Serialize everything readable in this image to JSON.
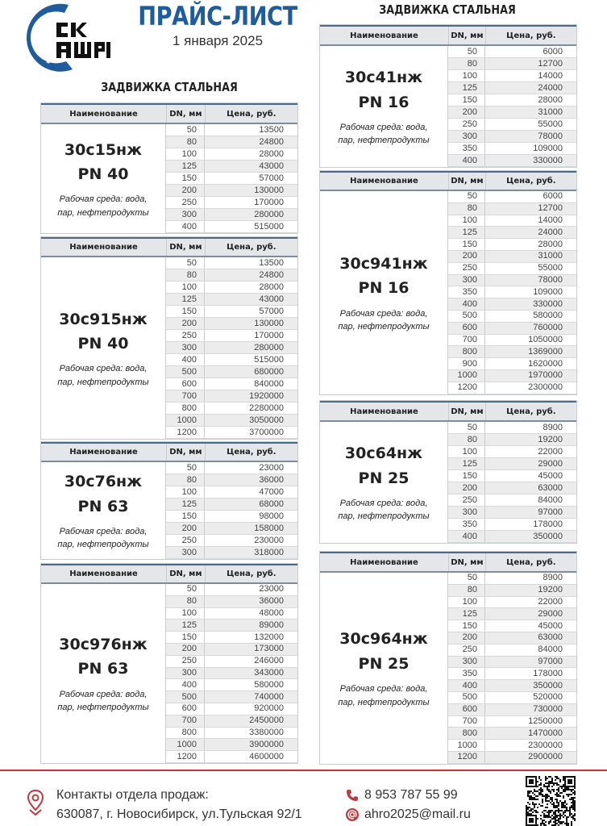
{
  "header": {
    "logo_text": [
      "СК",
      "АШРО"
    ],
    "title": "ПРАЙС-ЛИСТ",
    "date": "1 января 2025"
  },
  "section_title_left": "ЗАДВИЖКА СТАЛЬНАЯ",
  "section_title_right": "ЗАДВИЖКА СТАЛЬНАЯ",
  "columns": {
    "name": "Наименование",
    "dn": "DN, мм",
    "price": "Цена, руб."
  },
  "tables": [
    {
      "model": "30с15нж",
      "pn": "PN 40",
      "medium": "Рабочая среда: вода, пар, нефтепродукты",
      "rows": [
        [
          "50",
          "13500"
        ],
        [
          "80",
          "24800"
        ],
        [
          "100",
          "28000"
        ],
        [
          "125",
          "43000"
        ],
        [
          "150",
          "57000"
        ],
        [
          "200",
          "130000"
        ],
        [
          "250",
          "170000"
        ],
        [
          "300",
          "280000"
        ],
        [
          "400",
          "515000"
        ]
      ]
    },
    {
      "model": "30с915нж",
      "pn": "PN 40",
      "medium": "Рабочая среда: вода, пар, нефтепродукты",
      "rows": [
        [
          "50",
          "13500"
        ],
        [
          "80",
          "24800"
        ],
        [
          "100",
          "28000"
        ],
        [
          "125",
          "43000"
        ],
        [
          "150",
          "57000"
        ],
        [
          "200",
          "130000"
        ],
        [
          "250",
          "170000"
        ],
        [
          "300",
          "280000"
        ],
        [
          "400",
          "515000"
        ],
        [
          "500",
          "680000"
        ],
        [
          "600",
          "840000"
        ],
        [
          "700",
          "1920000"
        ],
        [
          "800",
          "2280000"
        ],
        [
          "1000",
          "3050000"
        ],
        [
          "1200",
          "3700000"
        ]
      ]
    },
    {
      "model": "30с76нж",
      "pn": "PN 63",
      "medium": "Рабочая среда: вода, пар, нефтепродукты",
      "rows": [
        [
          "50",
          "23000"
        ],
        [
          "80",
          "36000"
        ],
        [
          "100",
          "47000"
        ],
        [
          "125",
          "68000"
        ],
        [
          "150",
          "98000"
        ],
        [
          "200",
          "158000"
        ],
        [
          "250",
          "230000"
        ],
        [
          "300",
          "318000"
        ]
      ]
    },
    {
      "model": "30с976нж",
      "pn": "PN 63",
      "medium": "Рабочая среда: вода, пар, нефтепродукты",
      "rows": [
        [
          "50",
          "23000"
        ],
        [
          "80",
          "36000"
        ],
        [
          "100",
          "48000"
        ],
        [
          "125",
          "89000"
        ],
        [
          "150",
          "132000"
        ],
        [
          "200",
          "173000"
        ],
        [
          "250",
          "246000"
        ],
        [
          "300",
          "343000"
        ],
        [
          "400",
          "580000"
        ],
        [
          "500",
          "740000"
        ],
        [
          "600",
          "920000"
        ],
        [
          "700",
          "2450000"
        ],
        [
          "800",
          "3380000"
        ],
        [
          "1000",
          "3900000"
        ],
        [
          "1200",
          "4600000"
        ]
      ]
    },
    {
      "model": "30с41нж",
      "pn": "PN 16",
      "medium": "Рабочая среда: вода, пар, нефтепродукты",
      "rows": [
        [
          "50",
          "6000"
        ],
        [
          "80",
          "12700"
        ],
        [
          "100",
          "14000"
        ],
        [
          "125",
          "24000"
        ],
        [
          "150",
          "28000"
        ],
        [
          "200",
          "31000"
        ],
        [
          "250",
          "55000"
        ],
        [
          "300",
          "78000"
        ],
        [
          "350",
          "109000"
        ],
        [
          "400",
          "330000"
        ]
      ]
    },
    {
      "model": "30с941нж",
      "pn": "PN 16",
      "medium": "Рабочая среда: вода, пар, нефтепродукты",
      "rows": [
        [
          "50",
          "6000"
        ],
        [
          "80",
          "12700"
        ],
        [
          "100",
          "14000"
        ],
        [
          "125",
          "24000"
        ],
        [
          "150",
          "28000"
        ],
        [
          "200",
          "31000"
        ],
        [
          "250",
          "55000"
        ],
        [
          "300",
          "78000"
        ],
        [
          "350",
          "109000"
        ],
        [
          "400",
          "330000"
        ],
        [
          "500",
          "580000"
        ],
        [
          "600",
          "760000"
        ],
        [
          "700",
          "1050000"
        ],
        [
          "800",
          "1369000"
        ],
        [
          "900",
          "1620000"
        ],
        [
          "1000",
          "1970000"
        ],
        [
          "1200",
          "2300000"
        ]
      ]
    },
    {
      "model": "30с64нж",
      "pn": "PN 25",
      "medium": "Рабочая среда: вода, пар, нефтепродукты",
      "rows": [
        [
          "50",
          "8900"
        ],
        [
          "80",
          "19200"
        ],
        [
          "100",
          "22000"
        ],
        [
          "125",
          "29000"
        ],
        [
          "150",
          "45000"
        ],
        [
          "200",
          "63000"
        ],
        [
          "250",
          "84000"
        ],
        [
          "300",
          "97000"
        ],
        [
          "350",
          "178000"
        ],
        [
          "400",
          "350000"
        ]
      ]
    },
    {
      "model": "30с964нж",
      "pn": "PN 25",
      "medium": "Рабочая среда: вода, пар, нефтепродукты",
      "rows": [
        [
          "50",
          "8900"
        ],
        [
          "80",
          "19200"
        ],
        [
          "100",
          "22000"
        ],
        [
          "125",
          "29000"
        ],
        [
          "150",
          "45000"
        ],
        [
          "200",
          "63000"
        ],
        [
          "250",
          "84000"
        ],
        [
          "300",
          "97000"
        ],
        [
          "350",
          "178000"
        ],
        [
          "400",
          "350000"
        ],
        [
          "500",
          "520000"
        ],
        [
          "600",
          "730000"
        ],
        [
          "700",
          "1250000"
        ],
        [
          "800",
          "1470000"
        ],
        [
          "1000",
          "2300000"
        ],
        [
          "1200",
          "2900000"
        ]
      ]
    }
  ],
  "footer": {
    "contacts_label": "Контакты отдела продаж:",
    "address": "630087, г. Новосибирск, ул.Тульская 92/1",
    "phone": "8 953 787 55 99",
    "email": "ahro2025@mail.ru",
    "accent": "#c0393b",
    "icons": [
      "location-pin-icon",
      "phone-icon",
      "at-sign-icon",
      "qr-code"
    ]
  },
  "colors": {
    "brand_blue": "#1f5c9c"
  }
}
